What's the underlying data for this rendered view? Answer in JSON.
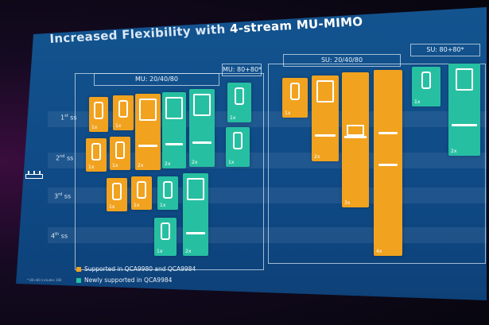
{
  "slide": {
    "title_prefix": "Increased Flexibility with ",
    "title_highlight": "4-stream MU-MIMO",
    "groups": {
      "mu_20_40_80": "MU: 20/40/80",
      "mu_80_80": "MU: 80+80*",
      "su_20_40_80": "SU: 20/40/80",
      "su_80_80": "SU: 80+80*"
    },
    "rows": [
      {
        "num": "1",
        "sup": "st",
        "unit": " ss"
      },
      {
        "num": "2",
        "sup": "nd",
        "unit": " ss"
      },
      {
        "num": "3",
        "sup": "rd",
        "unit": " ss"
      },
      {
        "num": "4",
        "sup": "th",
        "unit": " ss"
      }
    ],
    "captions": {
      "c1x": "1x",
      "c2x": "2x",
      "c3x": "3x",
      "c4x": "4x"
    },
    "legend": [
      {
        "label": "Supported in QCA9980 and QCA9984",
        "color": "#f1a21f"
      },
      {
        "label": "Newly supported in QCA9984",
        "color": "#27bfa2"
      }
    ],
    "footnote": "* 80+80 includes 160"
  },
  "colors": {
    "supported": "#f1a21f",
    "new": "#27bfa2",
    "slide_bg": "#1a4f8a"
  },
  "icons": [
    "router-icon",
    "phone-icon",
    "tablet-icon",
    "laptop-icon",
    "set-top-box-icon"
  ]
}
